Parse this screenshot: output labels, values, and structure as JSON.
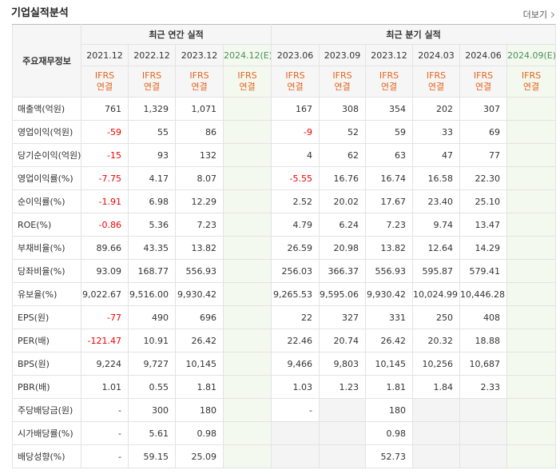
{
  "header": {
    "title": "기업실적분석",
    "more": "더보기"
  },
  "table": {
    "row_header": "주요재무정보",
    "groups": [
      {
        "label": "최근 연간 실적",
        "span": 4
      },
      {
        "label": "최근 분기 실적",
        "span": 6
      }
    ],
    "columns": [
      {
        "date": "2021.12",
        "estimate": false,
        "basis": [
          "IFRS",
          "연결"
        ]
      },
      {
        "date": "2022.12",
        "estimate": false,
        "basis": [
          "IFRS",
          "연결"
        ]
      },
      {
        "date": "2023.12",
        "estimate": false,
        "basis": [
          "IFRS",
          "연결"
        ]
      },
      {
        "date": "2024.12(E)",
        "estimate": true,
        "basis": [
          "IFRS",
          "연결"
        ]
      },
      {
        "date": "2023.06",
        "estimate": false,
        "basis": [
          "IFRS",
          "연결"
        ]
      },
      {
        "date": "2023.09",
        "estimate": false,
        "basis": [
          "IFRS",
          "연결"
        ]
      },
      {
        "date": "2023.12",
        "estimate": false,
        "basis": [
          "IFRS",
          "연결"
        ]
      },
      {
        "date": "2024.03",
        "estimate": false,
        "basis": [
          "IFRS",
          "연결"
        ]
      },
      {
        "date": "2024.06",
        "estimate": false,
        "basis": [
          "IFRS",
          "연결"
        ]
      },
      {
        "date": "2024.09(E)",
        "estimate": true,
        "basis": [
          "IFRS",
          "연결"
        ]
      }
    ],
    "row_groups": [
      3,
      3,
      3,
      4,
      3
    ],
    "rows": [
      {
        "label": "매출액(억원)",
        "cells": [
          "761",
          "1,329",
          "1,071",
          null,
          "167",
          "308",
          "354",
          "202",
          "307",
          null
        ]
      },
      {
        "label": "영업이익(억원)",
        "cells": [
          "-59",
          "55",
          "86",
          null,
          "-9",
          "52",
          "59",
          "33",
          "69",
          null
        ]
      },
      {
        "label": "당기순이익(억원)",
        "cells": [
          "-15",
          "93",
          "132",
          null,
          "4",
          "62",
          "63",
          "47",
          "77",
          null
        ]
      },
      {
        "label": "영업이익률(%)",
        "cells": [
          "-7.75",
          "4.17",
          "8.07",
          null,
          "-5.55",
          "16.76",
          "16.74",
          "16.58",
          "22.30",
          null
        ]
      },
      {
        "label": "순이익률(%)",
        "cells": [
          "-1.91",
          "6.98",
          "12.29",
          null,
          "2.52",
          "20.02",
          "17.67",
          "23.40",
          "25.10",
          null
        ]
      },
      {
        "label": "ROE(%)",
        "cells": [
          "-0.86",
          "5.36",
          "7.23",
          null,
          "4.79",
          "6.24",
          "7.23",
          "9.74",
          "13.47",
          null
        ]
      },
      {
        "label": "부채비율(%)",
        "cells": [
          "89.66",
          "43.35",
          "13.82",
          null,
          "26.59",
          "20.98",
          "13.82",
          "12.64",
          "14.29",
          null
        ]
      },
      {
        "label": "당좌비율(%)",
        "cells": [
          "93.09",
          "168.77",
          "556.93",
          null,
          "256.03",
          "366.37",
          "556.93",
          "595.87",
          "579.41",
          null
        ]
      },
      {
        "label": "유보율(%)",
        "cells": [
          "9,022.67",
          "9,516.00",
          "9,930.42",
          null,
          "9,265.53",
          "9,595.06",
          "9,930.42",
          "10,024.99",
          "10,446.28",
          null
        ]
      },
      {
        "label": "EPS(원)",
        "cells": [
          "-77",
          "490",
          "696",
          null,
          "22",
          "327",
          "331",
          "250",
          "408",
          null
        ]
      },
      {
        "label": "PER(배)",
        "cells": [
          "-121.47",
          "10.91",
          "26.42",
          null,
          "22.46",
          "20.74",
          "26.42",
          "20.32",
          "18.88",
          null
        ]
      },
      {
        "label": "BPS(원)",
        "cells": [
          "9,224",
          "9,727",
          "10,145",
          null,
          "9,466",
          "9,803",
          "10,145",
          "10,256",
          "10,687",
          null
        ]
      },
      {
        "label": "PBR(배)",
        "cells": [
          "1.01",
          "0.55",
          "1.81",
          null,
          "1.03",
          "1.23",
          "1.81",
          "1.84",
          "2.33",
          null
        ]
      },
      {
        "label": "주당배당금(원)",
        "cells": [
          "-",
          "300",
          "180",
          null,
          "-",
          null,
          "180",
          null,
          null,
          null
        ]
      },
      {
        "label": "시가배당률(%)",
        "cells": [
          "-",
          "5.61",
          "0.98",
          null,
          null,
          null,
          "0.98",
          null,
          null,
          null
        ]
      },
      {
        "label": "배당성향(%)",
        "cells": [
          "-",
          "59.15",
          "25.09",
          null,
          null,
          null,
          "52.73",
          null,
          null,
          null
        ]
      }
    ]
  }
}
